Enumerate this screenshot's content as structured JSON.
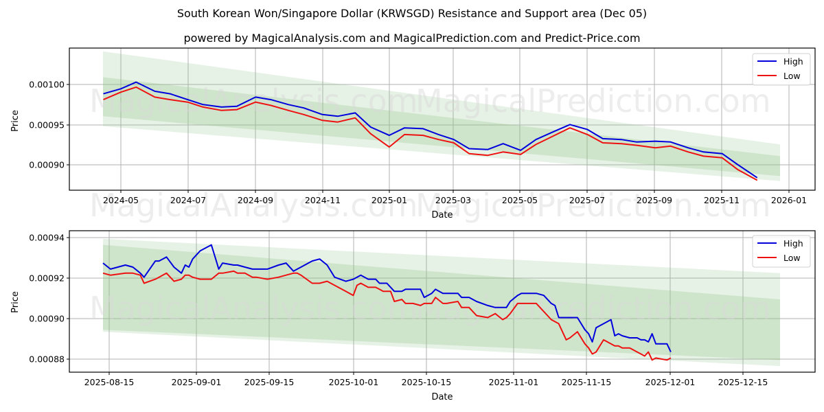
{
  "header": {
    "title": "South Korean Won/Singapore Dollar (KRWSGD) Resistance and Support area (Dec 05)",
    "subtitle": "powered by MagicalAnalysis.com and MagicalPrediction.com and Predict-Price.com"
  },
  "watermarks": [
    "MagicalAnalysis.com",
    "MagicalPrediction.com"
  ],
  "colors": {
    "high": "#0000dd",
    "low": "#ee1111",
    "band_outer": "#e3f0e1",
    "band_inner": "#cde5cb",
    "grid": "#b0b0b0"
  },
  "chart_data": [
    {
      "type": "line",
      "title": "",
      "xlabel": "Date",
      "ylabel": "Price",
      "x_ticks": [
        "2024-05",
        "2024-07",
        "2024-09",
        "2024-11",
        "2025-01",
        "2025-03",
        "2025-05",
        "2025-07",
        "2025-09",
        "2025-11",
        "2026-01"
      ],
      "y_ticks": [
        "0.00090",
        "0.00095",
        "0.00100"
      ],
      "ylim": [
        0.000869,
        0.00104
      ],
      "grid": true,
      "legend": {
        "position": "upper right",
        "entries": [
          "High",
          "Low"
        ]
      },
      "bands": {
        "x_range": [
          "2024-04-15",
          "2025-12-20"
        ],
        "outer_upper": [
          0.001036,
          0.000924
        ],
        "inner_upper": [
          0.001005,
          0.00091
        ],
        "inner_lower": [
          0.000958,
          0.000886
        ],
        "outer_lower": [
          0.000946,
          0.00088
        ]
      },
      "series": [
        {
          "name": "High",
          "x": [
            "2024-04-15",
            "2024-05-01",
            "2024-05-15",
            "2024-06-01",
            "2024-06-15",
            "2024-07-01",
            "2024-07-15",
            "2024-08-01",
            "2024-08-15",
            "2024-09-01",
            "2024-09-15",
            "2024-10-01",
            "2024-10-15",
            "2024-11-01",
            "2024-11-15",
            "2024-12-01",
            "2024-12-15",
            "2025-01-01",
            "2025-01-15",
            "2025-02-01",
            "2025-02-15",
            "2025-03-01",
            "2025-03-15",
            "2025-04-01",
            "2025-04-15",
            "2025-05-01",
            "2025-05-15",
            "2025-06-01",
            "2025-06-15",
            "2025-07-01",
            "2025-07-15",
            "2025-08-01",
            "2025-08-15",
            "2025-09-01",
            "2025-09-15",
            "2025-10-01",
            "2025-10-15",
            "2025-11-01",
            "2025-11-15",
            "2025-12-03"
          ],
          "values": [
            0.000985,
            0.000991,
            0.000999,
            0.000988,
            0.000985,
            0.000978,
            0.000972,
            0.000969,
            0.00097,
            0.000981,
            0.000978,
            0.000972,
            0.000968,
            0.00096,
            0.000958,
            0.000962,
            0.000945,
            0.000935,
            0.000944,
            0.000943,
            0.000936,
            0.00093,
            0.000919,
            0.000918,
            0.000925,
            0.000917,
            0.00093,
            0.00094,
            0.000948,
            0.000942,
            0.000931,
            0.00093,
            0.000927,
            0.000928,
            0.000927,
            0.00092,
            0.000915,
            0.000913,
            0.0009,
            0.000884
          ]
        },
        {
          "name": "Low",
          "x": [
            "2024-04-15",
            "2024-05-01",
            "2024-05-15",
            "2024-06-01",
            "2024-06-15",
            "2024-07-01",
            "2024-07-15",
            "2024-08-01",
            "2024-08-15",
            "2024-09-01",
            "2024-09-15",
            "2024-10-01",
            "2024-10-15",
            "2024-11-01",
            "2024-11-15",
            "2024-12-01",
            "2024-12-15",
            "2025-01-01",
            "2025-01-15",
            "2025-02-01",
            "2025-02-15",
            "2025-03-01",
            "2025-03-15",
            "2025-04-01",
            "2025-04-15",
            "2025-05-01",
            "2025-05-15",
            "2025-06-01",
            "2025-06-15",
            "2025-07-01",
            "2025-07-15",
            "2025-08-01",
            "2025-08-15",
            "2025-09-01",
            "2025-09-15",
            "2025-10-01",
            "2025-10-15",
            "2025-11-01",
            "2025-11-15",
            "2025-12-03"
          ],
          "values": [
            0.000978,
            0.000987,
            0.000993,
            0.000981,
            0.000978,
            0.000975,
            0.000969,
            0.000965,
            0.000966,
            0.000975,
            0.000971,
            0.000965,
            0.00096,
            0.000953,
            0.000951,
            0.000956,
            0.000937,
            0.000921,
            0.000936,
            0.000935,
            0.00093,
            0.000926,
            0.000913,
            0.000911,
            0.000915,
            0.000912,
            0.000924,
            0.000935,
            0.000944,
            0.000936,
            0.000926,
            0.000925,
            0.000923,
            0.00092,
            0.000922,
            0.000915,
            0.00091,
            0.000908,
            0.000894,
            0.000881
          ]
        }
      ]
    },
    {
      "type": "line",
      "title": "",
      "xlabel": "Date",
      "ylabel": "Price",
      "x_ticks": [
        "2025-08-15",
        "2025-09-01",
        "2025-09-15",
        "2025-10-01",
        "2025-10-15",
        "2025-11-01",
        "2025-11-15",
        "2025-12-01",
        "2025-12-15"
      ],
      "y_ticks": [
        "0.00088",
        "0.00090",
        "0.00092",
        "0.00094"
      ],
      "ylim": [
        0.000874,
        0.000944
      ],
      "grid": true,
      "legend": {
        "position": "upper right",
        "entries": [
          "High",
          "Low"
        ]
      },
      "bands": {
        "x_range": [
          "2025-08-14",
          "2025-12-20"
        ],
        "outer_upper": [
          0.00094,
          0.000923
        ],
        "inner_upper": [
          0.000937,
          0.00091
        ],
        "inner_lower": [
          0.000895,
          0.00088
        ],
        "outer_lower": [
          0.000894,
          0.000877
        ]
      },
      "series": [
        {
          "name": "High",
          "x": [
            0,
            2,
            6,
            8,
            10,
            11,
            14,
            15,
            16,
            17,
            19,
            21,
            22,
            23,
            24,
            26,
            29,
            31,
            32,
            35,
            36,
            38,
            40,
            41,
            44,
            47,
            49,
            51,
            52,
            53,
            56,
            58,
            60,
            62,
            65,
            67,
            68,
            69,
            71,
            73,
            74,
            75,
            76,
            77,
            78,
            80,
            81,
            83,
            85,
            86,
            88,
            89,
            91,
            92,
            95,
            96,
            98,
            100,
            103,
            105,
            107,
            108,
            109,
            111,
            112
          ],
          "values": [
            0.000928,
            0.000925,
            0.000927,
            0.000926,
            0.000923,
            0.000921,
            0.000929,
            0.000929,
            0.00093,
            0.000931,
            0.000926,
            0.000923,
            0.000927,
            0.000926,
            0.00093,
            0.000934,
            0.000937,
            0.000925,
            0.000928,
            0.000927,
            0.000927,
            0.000926,
            0.000925,
            0.000925,
            0.000925,
            0.000927,
            0.000928,
            0.000924,
            0.000925,
            0.000926,
            0.000929,
            0.00093,
            0.000927,
            0.000921,
            0.000919,
            0.00092,
            0.000921,
            0.000922,
            0.00092,
            0.00092,
            0.000918,
            0.000918,
            0.000918,
            0.000916,
            0.000914,
            0.000914,
            0.000915,
            0.000915,
            0.000915,
            0.000911,
            0.000913,
            0.000915,
            0.000913,
            0.000913,
            0.000913,
            0.000911,
            0.000911,
            0.000909,
            0.000907,
            0.000906,
            0.000906,
            0.000906,
            0.000909,
            0.000912,
            0.000913
          ]
        },
        {
          "name": "Low",
          "x": [
            0,
            2,
            6,
            8,
            10,
            11,
            14,
            15,
            16,
            17,
            19,
            21,
            22,
            23,
            24,
            26,
            29,
            31,
            32,
            35,
            36,
            38,
            40,
            41,
            44,
            47,
            49,
            51,
            52,
            53,
            56,
            58,
            60,
            62,
            65,
            67,
            68,
            69,
            71,
            73,
            74,
            75,
            76,
            77,
            78,
            80,
            81,
            83,
            85,
            86,
            88,
            89,
            91,
            92,
            95,
            96,
            98,
            100,
            103,
            105,
            107,
            108,
            109,
            111,
            112
          ],
          "values": [
            0.000923,
            0.000922,
            0.000923,
            0.000923,
            0.000922,
            0.000918,
            0.00092,
            0.000921,
            0.000922,
            0.000923,
            0.000919,
            0.00092,
            0.000922,
            0.000922,
            0.000921,
            0.00092,
            0.00092,
            0.000923,
            0.000923,
            0.000924,
            0.000923,
            0.000923,
            0.000921,
            0.000921,
            0.00092,
            0.000921,
            0.000922,
            0.000923,
            0.000923,
            0.000922,
            0.000918,
            0.000918,
            0.000919,
            0.000917,
            0.000914,
            0.000912,
            0.000917,
            0.000918,
            0.000916,
            0.000916,
            0.000915,
            0.000914,
            0.000914,
            0.000914,
            0.000909,
            0.00091,
            0.000908,
            0.000908,
            0.000907,
            0.000908,
            0.000908,
            0.000911,
            0.000908,
            0.000908,
            0.000909,
            0.000906,
            0.000906,
            0.000902,
            0.000901,
            0.000903,
            0.0009,
            0.000901,
            0.000903,
            0.000908,
            0.000908
          ]
        }
      ],
      "series_tail": {
        "x": [
          112,
          116,
          118,
          120,
          121,
          122,
          124,
          125,
          127,
          129,
          130,
          131,
          132,
          134,
          136,
          137,
          138,
          139,
          141,
          143,
          144,
          145,
          146,
          147,
          148,
          151,
          152
        ],
        "high": [
          0.000913,
          0.000913,
          0.000912,
          0.000908,
          0.000907,
          0.000901,
          0.000901,
          0.000901,
          0.000901,
          0.000895,
          0.000893,
          0.000889,
          0.000896,
          0.000898,
          0.0009,
          0.000892,
          0.000893,
          0.000892,
          0.000891,
          0.000891,
          0.00089,
          0.00089,
          0.000889,
          0.000893,
          0.000888,
          0.000888,
          0.000884
        ],
        "low": [
          0.000908,
          0.000908,
          0.000904,
          0.0009,
          0.000899,
          0.000898,
          0.00089,
          0.000891,
          0.000894,
          0.000888,
          0.000886,
          0.000883,
          0.000884,
          0.00089,
          0.000888,
          0.000887,
          0.000887,
          0.000886,
          0.000886,
          0.000884,
          0.000883,
          0.000882,
          0.000884,
          0.00088,
          0.000881,
          0.00088,
          0.000881
        ]
      }
    }
  ]
}
